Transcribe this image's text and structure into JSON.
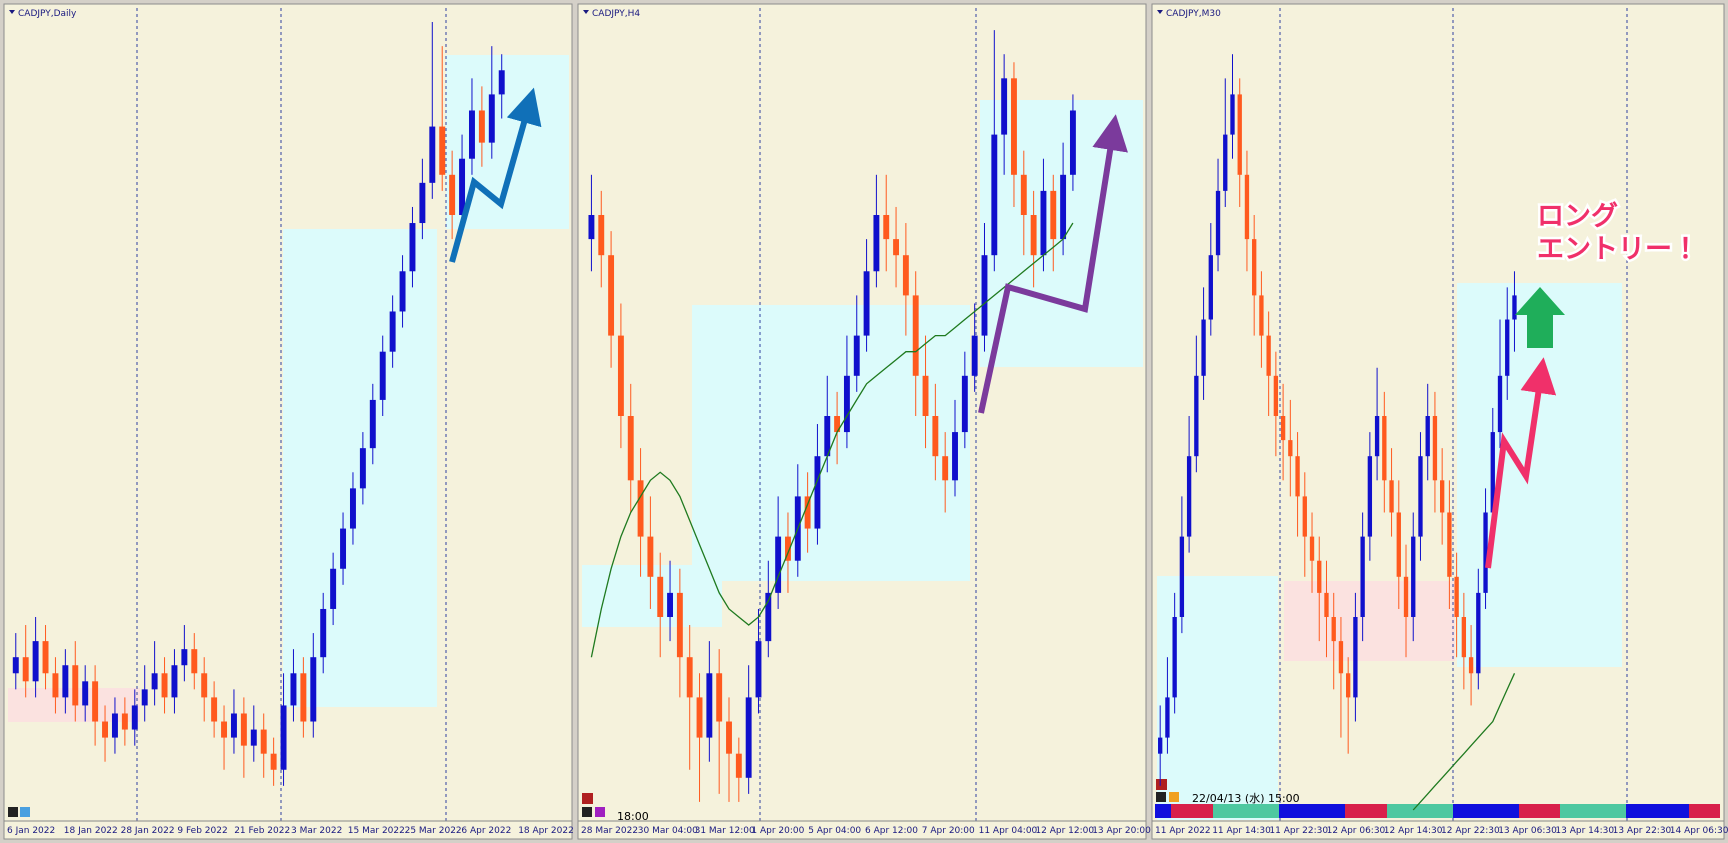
{
  "chart_data": [
    {
      "type": "candlestick",
      "title": "CADJPY,Daily",
      "ylim": [
        0,
        100
      ],
      "up_color": "#1010cc",
      "down_color": "#ff5a1e",
      "x_tick_labels": [
        "6 Jan 2022",
        "18 Jan 2022",
        "28 Jan 2022",
        "9 Feb 2022",
        "21 Feb 2022",
        "3 Mar 2022",
        "15 Mar 2022",
        "25 Mar 2022",
        "6 Apr 2022",
        "18 Apr 2022"
      ],
      "candles": [
        [
          18,
          23,
          16,
          20
        ],
        [
          20,
          24,
          15,
          17
        ],
        [
          17,
          25,
          15,
          22
        ],
        [
          22,
          24,
          16,
          18
        ],
        [
          18,
          20,
          13,
          15
        ],
        [
          15,
          21,
          13,
          19
        ],
        [
          19,
          22,
          12,
          14
        ],
        [
          14,
          19,
          12,
          17
        ],
        [
          17,
          19,
          9,
          12
        ],
        [
          12,
          14,
          7,
          10
        ],
        [
          10,
          15,
          8,
          13
        ],
        [
          13,
          15,
          9,
          11
        ],
        [
          11,
          16,
          9,
          14
        ],
        [
          14,
          19,
          12,
          16
        ],
        [
          16,
          22,
          14,
          18
        ],
        [
          18,
          20,
          13,
          15
        ],
        [
          15,
          21,
          13,
          19
        ],
        [
          19,
          24,
          17,
          21
        ],
        [
          21,
          23,
          16,
          18
        ],
        [
          18,
          20,
          12,
          15
        ],
        [
          15,
          17,
          10,
          12
        ],
        [
          12,
          14,
          6,
          10
        ],
        [
          10,
          16,
          8,
          13
        ],
        [
          13,
          15,
          5,
          9
        ],
        [
          9,
          14,
          7,
          11
        ],
        [
          11,
          13,
          5,
          8
        ],
        [
          8,
          10,
          4,
          6
        ],
        [
          6,
          18,
          4,
          14
        ],
        [
          14,
          21,
          12,
          18
        ],
        [
          18,
          20,
          10,
          12
        ],
        [
          12,
          23,
          10,
          20
        ],
        [
          20,
          28,
          18,
          26
        ],
        [
          26,
          33,
          24,
          31
        ],
        [
          31,
          38,
          29,
          36
        ],
        [
          36,
          43,
          34,
          41
        ],
        [
          41,
          48,
          39,
          46
        ],
        [
          46,
          54,
          44,
          52
        ],
        [
          52,
          60,
          50,
          58
        ],
        [
          58,
          65,
          56,
          63
        ],
        [
          63,
          70,
          61,
          68
        ],
        [
          68,
          76,
          66,
          74
        ],
        [
          74,
          82,
          72,
          79
        ],
        [
          79,
          99,
          77,
          86
        ],
        [
          86,
          96,
          78,
          80
        ],
        [
          80,
          83,
          72,
          75
        ],
        [
          75,
          85,
          73,
          82
        ],
        [
          82,
          92,
          80,
          88
        ],
        [
          88,
          91,
          81,
          84
        ],
        [
          84,
          96,
          82,
          90
        ],
        [
          90,
          95,
          87,
          93
        ]
      ]
    },
    {
      "type": "candlestick",
      "title": "CADJPY,H4",
      "ylim": [
        0,
        100
      ],
      "up_color": "#1010cc",
      "down_color": "#ff5a1e",
      "ma_color": "#1f7a1f",
      "time_label": "18:00",
      "x_tick_labels": [
        "28 Mar 2022",
        "30 Mar 04:00",
        "31 Mar 12:00",
        "1 Apr 20:00",
        "5 Apr 04:00",
        "6 Apr 12:00",
        "7 Apr 20:00",
        "11 Apr 04:00",
        "12 Apr 12:00",
        "13 Apr 20:00"
      ],
      "candles": [
        [
          72,
          80,
          68,
          75
        ],
        [
          75,
          78,
          66,
          70
        ],
        [
          70,
          73,
          56,
          60
        ],
        [
          60,
          64,
          46,
          50
        ],
        [
          50,
          54,
          38,
          42
        ],
        [
          42,
          46,
          30,
          35
        ],
        [
          35,
          40,
          26,
          30
        ],
        [
          30,
          33,
          20,
          25
        ],
        [
          25,
          32,
          22,
          28
        ],
        [
          28,
          31,
          15,
          20
        ],
        [
          20,
          24,
          6,
          15
        ],
        [
          15,
          18,
          2,
          10
        ],
        [
          10,
          22,
          7,
          18
        ],
        [
          18,
          21,
          3,
          12
        ],
        [
          12,
          15,
          2,
          8
        ],
        [
          8,
          10,
          2,
          5
        ],
        [
          5,
          19,
          3,
          15
        ],
        [
          15,
          26,
          13,
          22
        ],
        [
          22,
          32,
          20,
          28
        ],
        [
          28,
          40,
          26,
          35
        ],
        [
          35,
          38,
          28,
          32
        ],
        [
          32,
          44,
          30,
          40
        ],
        [
          40,
          43,
          33,
          36
        ],
        [
          36,
          49,
          34,
          45
        ],
        [
          45,
          55,
          43,
          50
        ],
        [
          50,
          53,
          44,
          48
        ],
        [
          48,
          60,
          46,
          55
        ],
        [
          55,
          65,
          53,
          60
        ],
        [
          60,
          72,
          58,
          68
        ],
        [
          68,
          80,
          66,
          75
        ],
        [
          75,
          80,
          68,
          72
        ],
        [
          72,
          76,
          66,
          70
        ],
        [
          70,
          74,
          60,
          65
        ],
        [
          65,
          68,
          50,
          55
        ],
        [
          55,
          60,
          46,
          50
        ],
        [
          50,
          54,
          42,
          45
        ],
        [
          45,
          48,
          38,
          42
        ],
        [
          42,
          52,
          40,
          48
        ],
        [
          48,
          58,
          46,
          55
        ],
        [
          55,
          64,
          53,
          60
        ],
        [
          60,
          74,
          58,
          70
        ],
        [
          70,
          98,
          68,
          85
        ],
        [
          85,
          95,
          80,
          92
        ],
        [
          92,
          94,
          76,
          80
        ],
        [
          80,
          83,
          70,
          75
        ],
        [
          75,
          78,
          66,
          70
        ],
        [
          70,
          82,
          68,
          78
        ],
        [
          78,
          80,
          68,
          72
        ],
        [
          72,
          84,
          70,
          80
        ],
        [
          80,
          90,
          78,
          88
        ]
      ],
      "ma": [
        20,
        26,
        31,
        35,
        38,
        40,
        42,
        43,
        42,
        40,
        37,
        34,
        31,
        28,
        26,
        25,
        24,
        25,
        27,
        30,
        33,
        36,
        39,
        42,
        45,
        48,
        50,
        52,
        54,
        55,
        56,
        57,
        58,
        58,
        59,
        60,
        60,
        61,
        62,
        63,
        64,
        65,
        66,
        67,
        68,
        69,
        70,
        71,
        72,
        74
      ]
    },
    {
      "type": "candlestick",
      "title": "CADJPY,M30",
      "ylim": [
        0,
        100
      ],
      "up_color": "#1010cc",
      "down_color": "#ff5a1e",
      "ma_color": "#1f7a1f",
      "time_label": "22/04/13 (水) 15:00",
      "annotation": [
        "ロング",
        "エントリー！"
      ],
      "x_tick_labels": [
        "11 Apr 2022",
        "11 Apr 14:30",
        "11 Apr 22:30",
        "12 Apr 06:30",
        "12 Apr 14:30",
        "12 Apr 22:30",
        "13 Apr 06:30",
        "13 Apr 14:30",
        "13 Apr 22:30",
        "14 Apr 06:30"
      ],
      "candles": [
        [
          8,
          14,
          4,
          10
        ],
        [
          10,
          20,
          8,
          15
        ],
        [
          15,
          28,
          13,
          25
        ],
        [
          25,
          40,
          23,
          35
        ],
        [
          35,
          50,
          33,
          45
        ],
        [
          45,
          60,
          43,
          55
        ],
        [
          55,
          66,
          52,
          62
        ],
        [
          62,
          74,
          60,
          70
        ],
        [
          70,
          82,
          68,
          78
        ],
        [
          78,
          92,
          76,
          85
        ],
        [
          85,
          95,
          82,
          90
        ],
        [
          90,
          92,
          76,
          80
        ],
        [
          80,
          83,
          68,
          72
        ],
        [
          72,
          75,
          60,
          65
        ],
        [
          65,
          68,
          56,
          60
        ],
        [
          60,
          63,
          50,
          55
        ],
        [
          55,
          58,
          45,
          50
        ],
        [
          50,
          54,
          42,
          47
        ],
        [
          47,
          52,
          40,
          45
        ],
        [
          45,
          48,
          35,
          40
        ],
        [
          40,
          43,
          30,
          35
        ],
        [
          35,
          38,
          28,
          32
        ],
        [
          32,
          35,
          22,
          28
        ],
        [
          28,
          32,
          20,
          25
        ],
        [
          25,
          28,
          16,
          22
        ],
        [
          22,
          25,
          10,
          18
        ],
        [
          18,
          20,
          8,
          15
        ],
        [
          15,
          28,
          12,
          25
        ],
        [
          25,
          38,
          22,
          35
        ],
        [
          35,
          48,
          32,
          45
        ],
        [
          45,
          56,
          42,
          50
        ],
        [
          50,
          53,
          38,
          42
        ],
        [
          42,
          46,
          35,
          38
        ],
        [
          38,
          42,
          26,
          30
        ],
        [
          30,
          34,
          20,
          25
        ],
        [
          25,
          38,
          22,
          35
        ],
        [
          35,
          48,
          32,
          45
        ],
        [
          45,
          54,
          42,
          50
        ],
        [
          50,
          53,
          38,
          42
        ],
        [
          42,
          46,
          34,
          38
        ],
        [
          38,
          42,
          26,
          30
        ],
        [
          30,
          33,
          20,
          25
        ],
        [
          25,
          28,
          16,
          20
        ],
        [
          20,
          24,
          14,
          18
        ],
        [
          18,
          31,
          16,
          28
        ],
        [
          28,
          41,
          26,
          38
        ],
        [
          38,
          51,
          36,
          48
        ],
        [
          48,
          62,
          46,
          55
        ],
        [
          55,
          66,
          52,
          62
        ],
        [
          62,
          68,
          58,
          65
        ]
      ],
      "ma": [
        null,
        null,
        null,
        null,
        null,
        null,
        null,
        null,
        null,
        null,
        null,
        null,
        null,
        null,
        null,
        null,
        null,
        null,
        null,
        null,
        null,
        null,
        null,
        null,
        null,
        null,
        null,
        null,
        null,
        null,
        null,
        null,
        null,
        null,
        null,
        1,
        2,
        3,
        4,
        5,
        6,
        7,
        8,
        9,
        10,
        11,
        12,
        14,
        16,
        18
      ]
    }
  ]
}
